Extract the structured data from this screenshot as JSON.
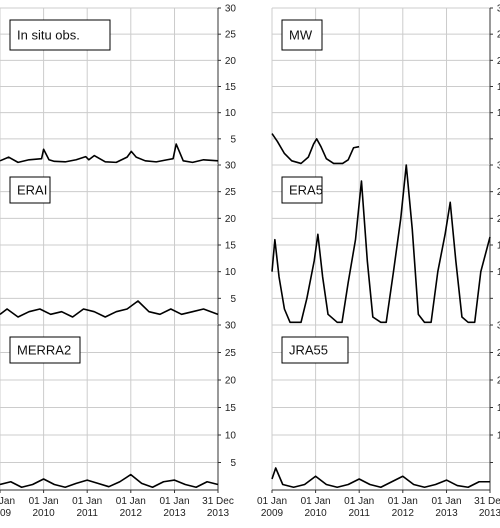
{
  "chart_data": [
    {
      "type": "line",
      "title": "In situ obs.",
      "ylim": [
        0,
        30
      ],
      "yticks": [
        5,
        10,
        15,
        20,
        25,
        30
      ],
      "series": [
        {
          "x": [
            "2009-01-01",
            "2009-03-15",
            "2009-06-01",
            "2009-09-01",
            "2009-12-15",
            "2010-01-01",
            "2010-02-15",
            "2010-04-01",
            "2010-07-01",
            "2010-10-01",
            "2010-12-20",
            "2011-01-15",
            "2011-03-01",
            "2011-06-01",
            "2011-09-01",
            "2011-12-01",
            "2012-01-05",
            "2012-02-15",
            "2012-05-01",
            "2012-08-01",
            "2012-11-01",
            "2012-12-20",
            "2013-01-15",
            "2013-03-15",
            "2013-06-01",
            "2013-09-01",
            "2013-12-31"
          ],
          "y": [
            0.8,
            1.5,
            0.5,
            1.0,
            1.2,
            3.0,
            1.0,
            0.7,
            0.6,
            1.0,
            1.6,
            1.0,
            1.8,
            0.6,
            0.5,
            1.5,
            2.6,
            1.5,
            0.8,
            0.6,
            1.0,
            1.2,
            4.0,
            0.8,
            0.5,
            1.0,
            0.8
          ]
        }
      ]
    },
    {
      "type": "line",
      "title": "MW",
      "ylim": [
        0,
        30
      ],
      "yticks": [
        5,
        10,
        15,
        20,
        25,
        30
      ],
      "series": [
        {
          "x": [
            "2009-01-01",
            "2009-02-15",
            "2009-04-15",
            "2009-06-15",
            "2009-09-01",
            "2009-11-01",
            "2009-12-15",
            "2010-01-10",
            "2010-02-15",
            "2010-04-01",
            "2010-06-01",
            "2010-08-15",
            "2010-10-01",
            "2010-11-15",
            "2010-12-31"
          ],
          "y": [
            6.0,
            4.5,
            2.2,
            0.8,
            0.3,
            1.5,
            4.0,
            5.0,
            3.5,
            1.2,
            0.3,
            0.3,
            1.0,
            3.3,
            3.5
          ]
        }
      ]
    },
    {
      "type": "line",
      "title": "ERAI",
      "ylim": [
        0,
        30
      ],
      "yticks": [
        5,
        10,
        15,
        20,
        25,
        30
      ],
      "series": [
        {
          "x": [
            "2009-01-01",
            "2009-03-01",
            "2009-06-01",
            "2009-09-01",
            "2009-12-01",
            "2010-03-01",
            "2010-06-01",
            "2010-09-01",
            "2010-12-01",
            "2011-03-01",
            "2011-06-01",
            "2011-09-01",
            "2011-12-01",
            "2012-03-01",
            "2012-06-01",
            "2012-09-01",
            "2012-12-01",
            "2013-03-01",
            "2013-06-01",
            "2013-09-01",
            "2013-12-31"
          ],
          "y": [
            2.0,
            3.0,
            1.5,
            2.5,
            3.0,
            2.0,
            2.5,
            1.5,
            3.0,
            2.5,
            1.5,
            2.5,
            3.0,
            4.5,
            2.5,
            2.0,
            3.0,
            2.0,
            2.5,
            3.0,
            2.0
          ]
        }
      ]
    },
    {
      "type": "line",
      "title": "ERA5",
      "ylim": [
        0,
        30
      ],
      "yticks": [
        5,
        10,
        15,
        20,
        25,
        30
      ],
      "series": [
        {
          "x": [
            "2009-01-01",
            "2009-01-25",
            "2009-03-01",
            "2009-04-15",
            "2009-06-01",
            "2009-09-01",
            "2009-10-20",
            "2009-12-20",
            "2010-01-20",
            "2010-03-01",
            "2010-04-15",
            "2010-07-01",
            "2010-08-10",
            "2010-10-01",
            "2010-12-01",
            "2011-01-20",
            "2011-03-10",
            "2011-04-25",
            "2011-07-01",
            "2011-08-15",
            "2011-10-15",
            "2011-12-15",
            "2012-01-30",
            "2012-03-20",
            "2012-05-10",
            "2012-07-01",
            "2012-08-25",
            "2012-10-20",
            "2012-12-20",
            "2013-02-01",
            "2013-03-20",
            "2013-05-10",
            "2013-07-01",
            "2013-08-25",
            "2013-10-15",
            "2013-12-31"
          ],
          "y": [
            10.0,
            16.0,
            9.0,
            3.0,
            0.5,
            0.5,
            5.0,
            12.0,
            17.0,
            9.0,
            2.0,
            0.5,
            0.5,
            8.0,
            16.0,
            27.0,
            12.0,
            1.5,
            0.5,
            0.5,
            10.0,
            20.0,
            30.0,
            18.0,
            2.0,
            0.5,
            0.5,
            10.0,
            17.0,
            23.0,
            12.0,
            1.5,
            0.5,
            0.5,
            10.0,
            16.5
          ]
        }
      ]
    },
    {
      "type": "line",
      "title": "MERRA2",
      "ylim": [
        0,
        30
      ],
      "yticks": [
        5,
        10,
        15,
        20,
        25,
        30
      ],
      "series": [
        {
          "x": [
            "2009-01-01",
            "2009-04-01",
            "2009-07-01",
            "2009-10-01",
            "2010-01-01",
            "2010-04-01",
            "2010-07-01",
            "2010-10-01",
            "2011-01-01",
            "2011-04-01",
            "2011-07-01",
            "2011-10-01",
            "2012-01-01",
            "2012-04-01",
            "2012-07-01",
            "2012-10-01",
            "2013-01-01",
            "2013-04-01",
            "2013-07-01",
            "2013-10-01",
            "2013-12-31"
          ],
          "y": [
            1.0,
            1.5,
            0.5,
            1.0,
            2.0,
            1.0,
            0.5,
            1.2,
            1.8,
            1.2,
            0.6,
            1.5,
            2.8,
            1.2,
            0.5,
            1.5,
            1.8,
            1.0,
            0.5,
            1.5,
            1.0
          ]
        }
      ]
    },
    {
      "type": "line",
      "title": "JRA55",
      "ylim": [
        0,
        30
      ],
      "yticks": [
        5,
        10,
        15,
        20,
        25,
        30
      ],
      "series": [
        {
          "x": [
            "2009-01-01",
            "2009-02-01",
            "2009-04-01",
            "2009-07-01",
            "2009-10-01",
            "2010-01-01",
            "2010-04-01",
            "2010-07-01",
            "2010-10-01",
            "2011-01-01",
            "2011-04-01",
            "2011-07-01",
            "2011-10-01",
            "2012-01-01",
            "2012-04-01",
            "2012-07-01",
            "2012-10-01",
            "2013-01-01",
            "2013-04-01",
            "2013-07-01",
            "2013-10-01",
            "2013-12-31"
          ],
          "y": [
            2.0,
            4.0,
            1.0,
            0.5,
            1.0,
            2.5,
            1.0,
            0.5,
            1.0,
            2.0,
            1.0,
            0.5,
            1.5,
            2.5,
            1.0,
            0.5,
            1.0,
            1.8,
            0.8,
            0.5,
            1.5,
            1.5
          ]
        }
      ]
    }
  ],
  "x_axis": {
    "range": [
      "2009-01-01",
      "2013-12-31"
    ],
    "ticks": [
      {
        "date": "2009-01-01",
        "line1": "01 Jan",
        "line2": "2009"
      },
      {
        "date": "2010-01-01",
        "line1": "01 Jan",
        "line2": "2010"
      },
      {
        "date": "2011-01-01",
        "line1": "01 Jan",
        "line2": "2011"
      },
      {
        "date": "2012-01-01",
        "line1": "01 Jan",
        "line2": "2012"
      },
      {
        "date": "2013-01-01",
        "line1": "01 Jan",
        "line2": "2013"
      },
      {
        "date": "2013-12-31",
        "line1": "31 Dec",
        "line2": "2013"
      }
    ]
  },
  "colors": {
    "line": "#000000",
    "grid": "#cccccc",
    "frame": "#333333"
  }
}
